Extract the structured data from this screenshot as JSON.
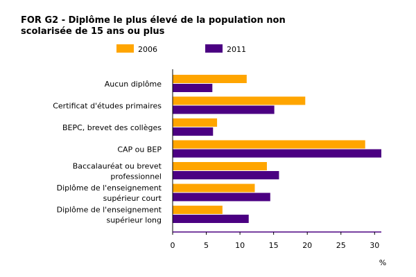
{
  "chart_data": {
    "type": "bar",
    "orientation": "horizontal",
    "title": "FOR G2 - Diplôme le plus élevé de la population non scolarisée de 15 ans ou plus",
    "title_lines": [
      "FOR G2 - Diplôme le plus élevé de la population non",
      "scolarisée de 15 ans ou plus"
    ],
    "categories": [
      "Aucun diplôme",
      "Certificat d'études primaires",
      "BEPC, brevet des collèges",
      "CAP ou BEP",
      "Baccalauréat ou brevet professionnel",
      "Diplôme de l'enseignement supérieur court",
      "Diplôme de l'enseignement supérieur long"
    ],
    "category_lines": [
      [
        "Aucun diplôme"
      ],
      [
        "Certificat d'études primaires"
      ],
      [
        "BEPC, brevet des collèges"
      ],
      [
        "CAP ou BEP"
      ],
      [
        "Baccalauréat ou brevet",
        "professionnel"
      ],
      [
        "Diplôme de l'enseignement",
        "supérieur court"
      ],
      [
        "Diplôme de l'enseignement",
        "supérieur long"
      ]
    ],
    "series": [
      {
        "name": "2006",
        "color": "#FFA500",
        "values": [
          11.0,
          19.7,
          6.6,
          28.6,
          14.0,
          12.2,
          7.4
        ]
      },
      {
        "name": "2011",
        "color": "#4B0082",
        "values": [
          5.9,
          15.1,
          6.0,
          31.0,
          15.8,
          14.5,
          11.3
        ]
      }
    ],
    "xlabel": "%",
    "ylabel": "",
    "xlim": [
      0,
      31
    ],
    "xticks": [
      0,
      5,
      10,
      15,
      20,
      25,
      30
    ],
    "grid": false,
    "legend_position": "top"
  }
}
